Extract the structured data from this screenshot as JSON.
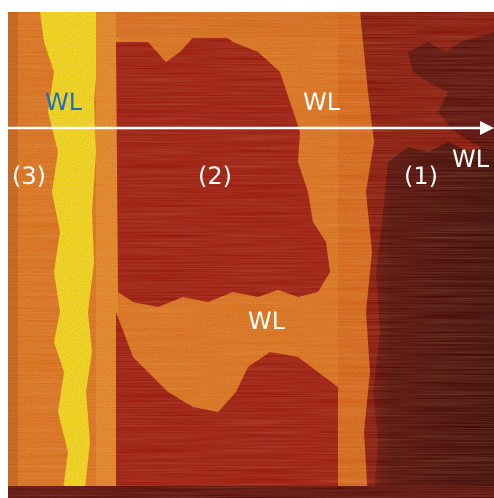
{
  "labels": {
    "wl_left": "WL",
    "wl_top_center": "WL",
    "wl_right_arrow": "WL",
    "wl_lower_center": "WL",
    "region_3": "(3)",
    "region_2": "(2)",
    "region_1": "(1)"
  },
  "colors": {
    "label_white": "#ffffff",
    "label_blue": "#1a6fc4",
    "bright_yellow": "#ffe21a",
    "orange": "#e8761e",
    "deep_red": "#a4150c",
    "dark_maroon": "#4c0505",
    "arrow": "#ffffff"
  }
}
